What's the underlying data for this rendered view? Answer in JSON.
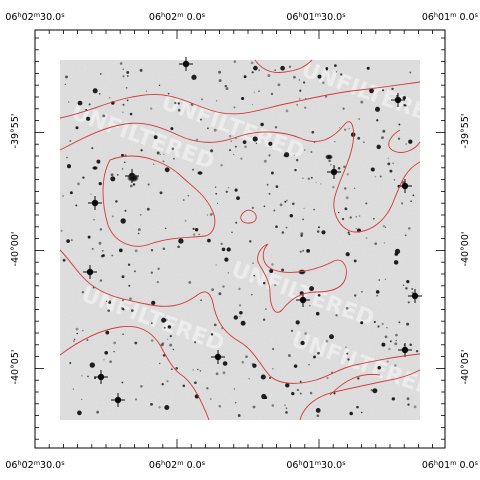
{
  "figure": {
    "ra_labels": [
      {
        "h": "06",
        "m": "02",
        "s": "30.0"
      },
      {
        "h": "06",
        "m": "02",
        "s": " 0.0"
      },
      {
        "h": "06",
        "m": "01",
        "s": "30.0"
      },
      {
        "h": "06",
        "m": "01",
        "s": " 0.0"
      }
    ],
    "dec_labels": [
      "-39°55'",
      "-40°00'",
      "-40°05'"
    ],
    "unit_symbols": {
      "hour": "h",
      "minute": "m",
      "second": "s"
    },
    "watermark_text": "UNFILTERED",
    "colors": {
      "background": "#ffffff",
      "sky": "#d6d6d6",
      "contour": "#d13a3a",
      "axis": "#000000",
      "star": "#0a0a0a"
    }
  }
}
